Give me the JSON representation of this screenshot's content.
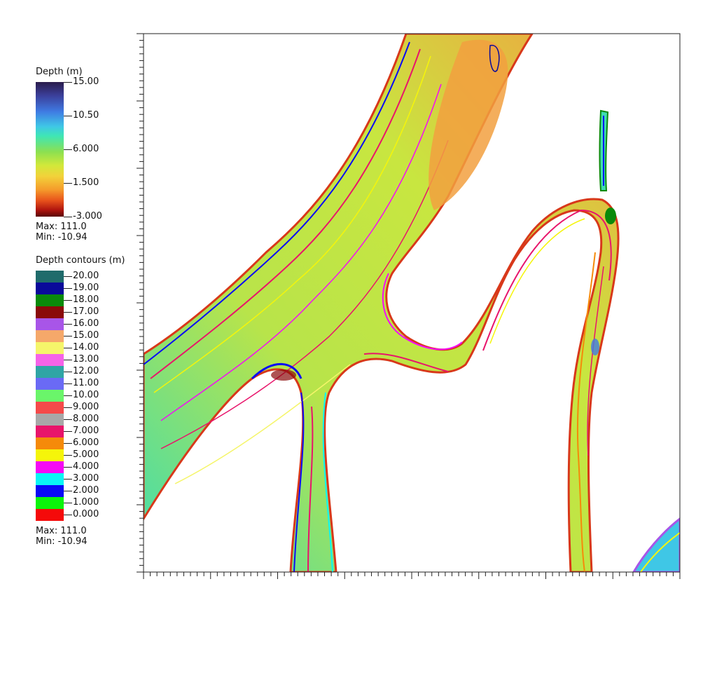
{
  "depth_legend": {
    "title": "Depth (m)",
    "ticks": [
      "15.00",
      "10.50",
      "6.000",
      "1.500",
      "-3.000"
    ],
    "max_label": "Max:  111.0",
    "min_label": "Min: -10.94"
  },
  "contour_legend": {
    "title": "Depth contours (m)",
    "entries": [
      {
        "label": "20.00",
        "color": "#1f6b6b"
      },
      {
        "label": "19.00",
        "color": "#0a0a9a"
      },
      {
        "label": "18.00",
        "color": "#0a8a0a"
      },
      {
        "label": "17.00",
        "color": "#8a0a0a"
      },
      {
        "label": "16.00",
        "color": "#a855e8"
      },
      {
        "label": "15.00",
        "color": "#f5a86a"
      },
      {
        "label": "14.00",
        "color": "#f5f56a"
      },
      {
        "label": "13.00",
        "color": "#f563e8"
      },
      {
        "label": "12.00",
        "color": "#2fa5a5"
      },
      {
        "label": "11.00",
        "color": "#6a6af5"
      },
      {
        "label": "10.00",
        "color": "#6af56a"
      },
      {
        "label": "9.000",
        "color": "#f54a4a"
      },
      {
        "label": "8.000",
        "color": "#a8a8a8"
      },
      {
        "label": "7.000",
        "color": "#e8156b"
      },
      {
        "label": "6.000",
        "color": "#f58a0a"
      },
      {
        "label": "5.000",
        "color": "#f5f50a"
      },
      {
        "label": "4.000",
        "color": "#f50af5"
      },
      {
        "label": "3.000",
        "color": "#0af5f5"
      },
      {
        "label": "2.000",
        "color": "#0a0af5"
      },
      {
        "label": "1.000",
        "color": "#0af50a"
      },
      {
        "label": "0.000",
        "color": "#f50a0a"
      }
    ],
    "max_label": "Max:  111.0",
    "min_label": "Min: -10.94"
  },
  "colors": {
    "channel_shallow": "#f2a040",
    "channel_mid": "#c8e640",
    "channel_deep": "#3fdcb0",
    "frame": "#222222"
  }
}
